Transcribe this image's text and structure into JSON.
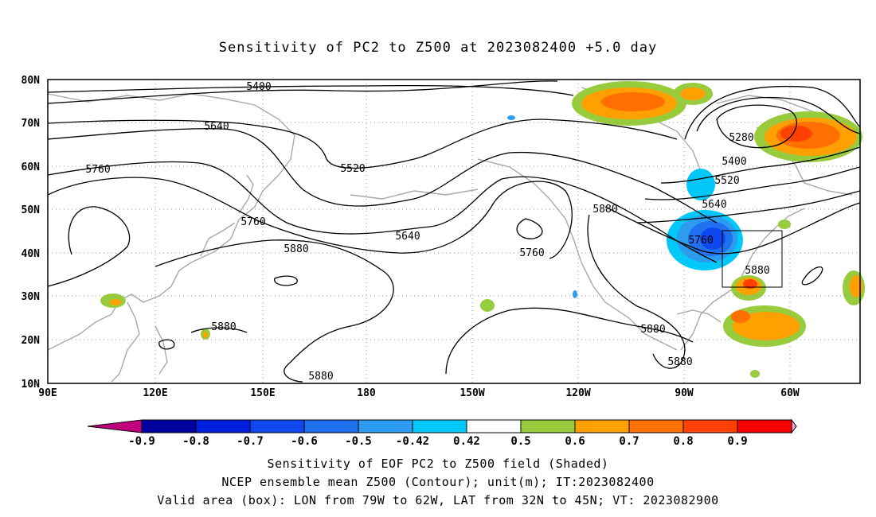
{
  "title": "Sensitivity of PC2 to Z500 at 2023082400 +5.0 day",
  "map": {
    "lat_labels": [
      "80N",
      "70N",
      "60N",
      "50N",
      "40N",
      "30N",
      "20N",
      "10N"
    ],
    "lon_labels": [
      "90E",
      "120E",
      "150E",
      "180",
      "150W",
      "120W",
      "90W",
      "60W"
    ],
    "contour_labels": [
      {
        "text": "5400"
      },
      {
        "text": "5640"
      },
      {
        "text": "5520"
      },
      {
        "text": "5760"
      },
      {
        "text": "5760"
      },
      {
        "text": "5640"
      },
      {
        "text": "5880"
      },
      {
        "text": "5760"
      },
      {
        "text": "5880"
      },
      {
        "text": "5280"
      },
      {
        "text": "5400"
      },
      {
        "text": "5520"
      },
      {
        "text": "5640"
      },
      {
        "text": "5760"
      },
      {
        "text": "5880"
      },
      {
        "text": "5880"
      },
      {
        "text": "5880"
      },
      {
        "text": "5880"
      },
      {
        "text": "5880"
      }
    ],
    "box": {
      "lon_from": "79W",
      "lon_to": "62W",
      "lat_from": "32N",
      "lat_to": "45N"
    }
  },
  "colorbar": {
    "labels": [
      "-0.9",
      "-0.8",
      "-0.7",
      "-0.6",
      "-0.5",
      "-0.42",
      "0.42",
      "0.5",
      "0.6",
      "0.7",
      "0.8",
      "0.9"
    ],
    "colors": [
      "#0000a0",
      "#0020e0",
      "#1048f0",
      "#2070f0",
      "#2c9cf0",
      "#00c8f8",
      "#ffffff",
      "#98cc3c",
      "#ffa000",
      "#ff7000",
      "#ff4000",
      "#ff0000"
    ],
    "under_color": "#c0007c",
    "over_color": "#f8a0c8"
  },
  "captions": {
    "line1": "Sensitivity of EOF PC2 to Z500 field (Shaded)",
    "line2": "NCEP ensemble mean Z500 (Contour); unit(m); IT:2023082400",
    "line3": "Valid area (box): LON from 79W to 62W, LAT from 32N to 45N; VT: 2023082900"
  }
}
